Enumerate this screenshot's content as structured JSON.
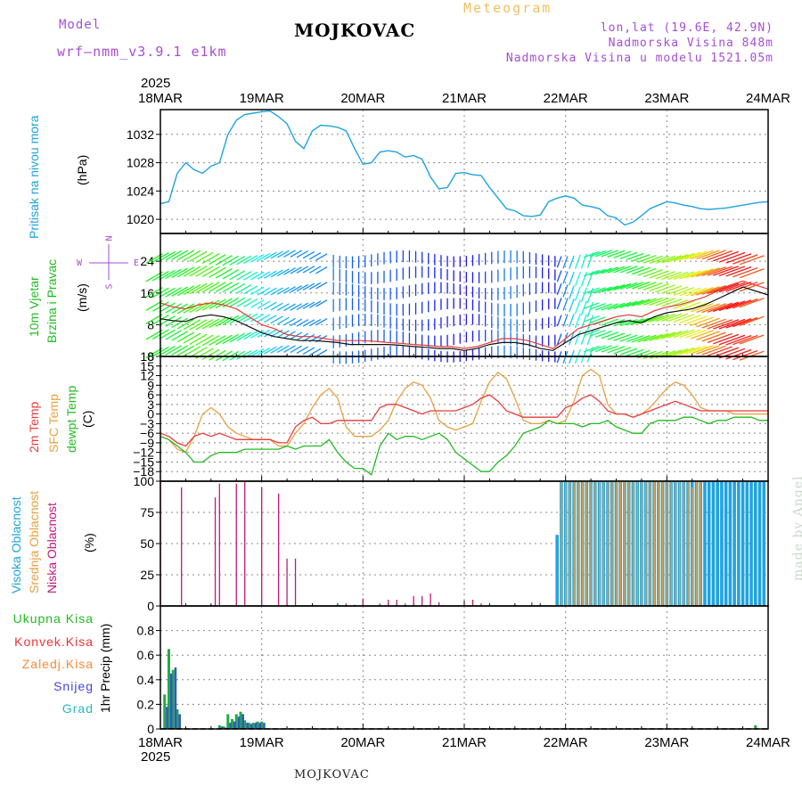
{
  "header": {
    "model_label": "Model",
    "model_version": "wrf–nmm_v3.9.1  e1km",
    "title": "MOJKOVAC",
    "meteogram": "Meteogram",
    "lonlat": "lon,lat (19.6E, 42.9N)",
    "elevation": "Nadmorska Visina 848m",
    "model_elevation": "Nadmorska Visina u modelu 1521.05m"
  },
  "footer": {
    "location": "MOJKOVAC"
  },
  "credit": "made by Angel",
  "time_axis": {
    "year": "2025",
    "ticks": [
      "18MAR",
      "19MAR",
      "20MAR",
      "21MAR",
      "22MAR",
      "23MAR",
      "24MAR"
    ]
  },
  "panels": {
    "pressure": {
      "label": "Pritisak na nivou mora",
      "unit": "(hPa)"
    },
    "wind": {
      "label_line1": "10m Vjetar",
      "label_line2": "Brzina i Pravac",
      "unit": "(m/s)",
      "compass_n": "N",
      "compass_s": "S",
      "compass_e": "E",
      "compass_w": "W"
    },
    "temp": {
      "label1": "2m Temp",
      "label2": "SFC Temp",
      "label3": "dewpt Temp",
      "unit": "(C)"
    },
    "cloud": {
      "label1": "Visoka Oblacnost",
      "label2": "Srednja Oblacnost",
      "label3": "Niska Oblacnost",
      "unit": "(%)"
    },
    "precip": {
      "legend": [
        "Ukupna Kisa",
        "Konvek.Kisa",
        "Zaledj.Kisa",
        "Snijeg",
        "Grad"
      ],
      "legend_colors": [
        "#22bb22",
        "#ee3333",
        "#ff8833",
        "#4444dd",
        "#22bbbb"
      ],
      "unit": "1hr Precip (mm)"
    }
  },
  "colors": {
    "pressure": "#1fa3e0",
    "t2m": "#e83a3a",
    "tsfc": "#e8a040",
    "dewpt": "#22bb22",
    "low_cloud": "#c0187a",
    "mid_cloud": "#e8a040",
    "high_cloud": "#1fa3e0",
    "total_precip": "#22aa44",
    "snow": "#3355cc",
    "wind_speed": "#111111",
    "wind_gust": "#e83a3a",
    "label_purple": "#a64dd6"
  },
  "chart_data": [
    {
      "type": "line",
      "name": "pressure",
      "ylabel": "(hPa)",
      "ylim": [
        1018,
        1035.5
      ],
      "yticks": [
        1020,
        1024,
        1028,
        1032
      ],
      "x_hours": [
        0,
        2,
        4,
        6,
        8,
        10,
        12,
        14,
        16,
        18,
        20,
        22,
        24,
        26,
        28,
        30,
        32,
        34,
        36,
        38,
        40,
        42,
        44,
        46,
        48,
        50,
        52,
        54,
        56,
        58,
        60,
        62,
        64,
        66,
        68,
        70,
        72,
        74,
        76,
        78,
        80,
        82,
        84,
        86,
        88,
        90,
        92,
        94,
        96,
        98,
        100,
        102,
        104,
        106,
        108,
        110,
        112,
        114,
        116,
        118,
        120,
        122,
        124,
        126,
        128,
        130,
        132,
        134,
        136,
        138,
        140,
        142,
        144
      ],
      "values": [
        1022.2,
        1022.5,
        1026.5,
        1028.0,
        1027.0,
        1026.5,
        1027.5,
        1028.0,
        1032.0,
        1034.0,
        1034.8,
        1035.0,
        1035.2,
        1035.3,
        1034.5,
        1033.5,
        1031.0,
        1030.0,
        1032.5,
        1033.3,
        1033.2,
        1033.0,
        1032.5,
        1030.0,
        1027.8,
        1028.0,
        1029.5,
        1029.7,
        1029.5,
        1028.8,
        1029.0,
        1028.5,
        1026.0,
        1024.3,
        1024.5,
        1026.5,
        1026.6,
        1026.3,
        1026.2,
        1024.5,
        1023.0,
        1021.5,
        1021.2,
        1020.5,
        1020.4,
        1020.6,
        1022.5,
        1023.0,
        1023.3,
        1023.0,
        1022.0,
        1021.8,
        1021.5,
        1020.5,
        1020.2,
        1019.2,
        1019.6,
        1020.5,
        1021.5,
        1022.0,
        1022.5,
        1022.3,
        1022.0,
        1021.8,
        1021.5,
        1021.4,
        1021.5,
        1021.6,
        1021.8,
        1022.0,
        1022.2,
        1022.4,
        1022.5
      ]
    },
    {
      "type": "line",
      "name": "wind",
      "ylabel": "(m/s)",
      "ylim": [
        0,
        31
      ],
      "yticks": [
        0,
        8,
        16,
        24
      ],
      "x_hours": [
        0,
        3,
        6,
        9,
        12,
        15,
        18,
        21,
        24,
        27,
        30,
        33,
        36,
        39,
        42,
        45,
        48,
        51,
        54,
        57,
        60,
        63,
        66,
        69,
        72,
        75,
        78,
        81,
        84,
        87,
        90,
        93,
        96,
        99,
        102,
        105,
        108,
        111,
        114,
        117,
        120,
        123,
        126,
        129,
        132,
        135,
        138,
        141,
        144
      ],
      "speed": [
        9.5,
        9.0,
        8.8,
        10.0,
        10.5,
        10.0,
        9.0,
        7.5,
        6.0,
        5.0,
        4.5,
        4.0,
        4.0,
        3.8,
        3.5,
        3.0,
        3.0,
        3.0,
        3.0,
        2.8,
        2.5,
        2.3,
        2.0,
        2.0,
        1.5,
        2.0,
        3.0,
        3.5,
        3.5,
        3.0,
        2.0,
        1.5,
        3.5,
        5.5,
        6.5,
        7.5,
        8.5,
        9.0,
        8.5,
        10.0,
        11.0,
        11.5,
        12.0,
        13.0,
        14.5,
        16.0,
        17.5,
        16.5,
        15.5
      ],
      "gust": [
        13.5,
        12.5,
        12.0,
        13.0,
        13.5,
        13.0,
        12.0,
        10.0,
        8.0,
        7.0,
        5.5,
        5.0,
        5.0,
        4.5,
        4.0,
        4.0,
        4.0,
        3.8,
        3.5,
        3.3,
        3.0,
        2.8,
        2.5,
        2.5,
        2.0,
        2.5,
        3.5,
        4.5,
        4.5,
        4.0,
        3.0,
        2.0,
        4.5,
        7.0,
        8.0,
        9.0,
        10.0,
        10.5,
        10.0,
        11.5,
        12.5,
        13.0,
        14.0,
        15.0,
        16.5,
        18.0,
        19.0,
        18.0,
        17.0
      ]
    },
    {
      "type": "line",
      "name": "temperature",
      "ylabel": "(C)",
      "ylim": [
        -21,
        18
      ],
      "yticks": [
        -18,
        -15,
        -12,
        -9,
        -6,
        -3,
        0,
        3,
        6,
        9,
        12,
        15,
        18
      ],
      "x_hours": [
        0,
        2,
        4,
        6,
        8,
        10,
        12,
        14,
        16,
        18,
        20,
        22,
        24,
        26,
        28,
        30,
        32,
        34,
        36,
        38,
        40,
        42,
        44,
        46,
        48,
        50,
        52,
        54,
        56,
        58,
        60,
        62,
        64,
        66,
        68,
        70,
        72,
        74,
        76,
        78,
        80,
        82,
        84,
        86,
        88,
        90,
        92,
        94,
        96,
        98,
        100,
        102,
        104,
        106,
        108,
        110,
        112,
        114,
        116,
        118,
        120,
        122,
        124,
        126,
        128,
        130,
        132,
        134,
        136,
        138,
        140,
        142,
        144
      ],
      "t2m": [
        -6,
        -7,
        -9,
        -10,
        -7,
        -6,
        -7,
        -6,
        -7,
        -8,
        -8,
        -8,
        -8,
        -8,
        -9,
        -9,
        -4,
        -2,
        -1,
        -3,
        -3,
        -2,
        -2,
        -2,
        -2,
        -2,
        2,
        3,
        3,
        2,
        1,
        0,
        1,
        1,
        1,
        1,
        2,
        3,
        5,
        6,
        4,
        1,
        0,
        -1,
        -1,
        -1,
        -1,
        -1,
        2,
        3,
        5,
        6,
        4,
        1,
        0,
        0,
        -1,
        0,
        1,
        2,
        3,
        4,
        3,
        2,
        1,
        1,
        1,
        1,
        1,
        1,
        1,
        1,
        1
      ],
      "tsfc": [
        -7,
        -8,
        -11,
        -12,
        -7,
        0,
        2,
        0,
        -4,
        -6,
        -7,
        -8,
        -8,
        -8,
        -10,
        -10,
        -6,
        -3,
        2,
        6,
        8,
        5,
        -4,
        -7,
        -7,
        -7,
        -5,
        -2,
        4,
        8,
        10,
        9,
        5,
        -2,
        -4,
        -5,
        -4,
        -3,
        4,
        10,
        13,
        11,
        5,
        -2,
        -3,
        -3,
        -2,
        -3,
        -2,
        4,
        12,
        14,
        12,
        3,
        0,
        0,
        -1,
        0,
        2,
        5,
        8,
        10,
        9,
        6,
        2,
        1,
        1,
        1,
        0,
        0,
        0,
        0,
        0
      ],
      "dewpt": [
        -7,
        -8,
        -10,
        -12,
        -15,
        -15,
        -13,
        -12,
        -12,
        -12,
        -11,
        -11,
        -11,
        -11,
        -11,
        -10,
        -11,
        -10,
        -10,
        -10,
        -8,
        -12,
        -15,
        -17,
        -17,
        -19,
        -10,
        -6,
        -8,
        -7,
        -7,
        -8,
        -7,
        -6,
        -8,
        -12,
        -14,
        -16,
        -18,
        -18,
        -15,
        -13,
        -10,
        -6,
        -5,
        -4,
        -2,
        -3,
        -3,
        -3,
        -4,
        -3,
        -3,
        -2,
        -4,
        -5,
        -6,
        -6,
        -3,
        -2,
        -2,
        -2,
        -1,
        -1,
        -2,
        -3,
        -2,
        -2,
        -1,
        -1,
        -1,
        -2,
        -2
      ]
    },
    {
      "type": "bar",
      "name": "cloud",
      "ylabel": "(%)",
      "ylim": [
        0,
        100
      ],
      "yticks": [
        0,
        25,
        50,
        75,
        100
      ],
      "low_x_hours": [
        0,
        2,
        5,
        8,
        13,
        14,
        16,
        18,
        20,
        23,
        24,
        26,
        28,
        30,
        32,
        34,
        36,
        38,
        40,
        44,
        46,
        48,
        52,
        54,
        56,
        58,
        60,
        62,
        64,
        66,
        70,
        74,
        76,
        78,
        82,
        88
      ],
      "low_values": [
        100,
        0,
        95,
        0,
        87,
        98,
        0,
        98,
        100,
        0,
        95,
        0,
        90,
        38,
        38,
        0,
        0,
        0,
        0,
        2,
        1,
        6,
        2,
        5,
        5,
        2,
        8,
        8,
        10,
        3,
        0,
        5,
        2,
        1,
        0,
        3
      ],
      "high_x_hours": [
        94,
        95,
        96,
        97,
        98,
        99,
        100,
        101,
        102,
        103,
        104,
        105,
        106,
        107,
        108,
        109,
        110,
        111,
        112,
        113,
        114,
        115,
        116,
        117,
        118,
        119,
        120,
        121,
        122,
        123,
        124,
        125,
        126,
        127,
        128,
        129,
        130,
        131,
        132,
        133,
        134,
        135,
        136,
        137,
        138,
        139,
        140,
        141,
        142,
        143
      ],
      "high_values": [
        57,
        100,
        100,
        100,
        100,
        100,
        100,
        100,
        100,
        100,
        100,
        100,
        100,
        100,
        100,
        100,
        100,
        100,
        100,
        100,
        100,
        100,
        100,
        100,
        100,
        100,
        100,
        100,
        100,
        100,
        100,
        100,
        100,
        100,
        100,
        100,
        100,
        100,
        100,
        100,
        100,
        100,
        100,
        100,
        100,
        100,
        100,
        100,
        100,
        100
      ],
      "mid_x_hours": [
        95,
        96,
        97,
        98,
        99,
        100,
        101,
        102,
        103,
        104,
        105,
        106,
        107,
        108,
        109,
        110,
        111,
        112,
        113,
        114,
        115,
        116,
        117,
        118,
        119,
        120,
        121,
        122,
        123,
        124,
        125,
        126,
        127,
        128
      ],
      "mid_values": [
        100,
        100,
        100,
        100,
        100,
        100,
        100,
        100,
        100,
        100,
        100,
        100,
        100,
        100,
        100,
        100,
        100,
        100,
        100,
        100,
        100,
        100,
        100,
        100,
        100,
        100,
        100,
        100,
        100,
        100,
        100,
        95,
        100,
        100
      ]
    },
    {
      "type": "bar",
      "name": "precip",
      "ylabel": "1hr Precip (mm)",
      "ylim": [
        0,
        1.0
      ],
      "yticks": [
        0,
        0.2,
        0.4,
        0.6,
        0.8
      ],
      "total_x_hours": [
        1,
        2,
        3,
        4,
        5,
        14,
        15,
        16,
        17,
        18,
        19,
        20,
        21,
        22,
        23,
        24,
        25,
        141
      ],
      "total_values": [
        0.28,
        0.65,
        0.48,
        0.16,
        0.0,
        0.03,
        0.02,
        0.12,
        0.08,
        0.12,
        0.14,
        0.07,
        0.05,
        0.05,
        0.06,
        0.06,
        0.0,
        0.03
      ],
      "snow_x_hours": [
        1,
        2,
        3,
        4,
        14,
        15,
        16,
        17,
        18,
        19,
        20,
        21,
        22,
        23,
        24
      ],
      "snow_values": [
        0.18,
        0.45,
        0.5,
        0.12,
        0.02,
        0.01,
        0.05,
        0.06,
        0.1,
        0.12,
        0.05,
        0.04,
        0.05,
        0.05,
        0.05
      ]
    }
  ]
}
